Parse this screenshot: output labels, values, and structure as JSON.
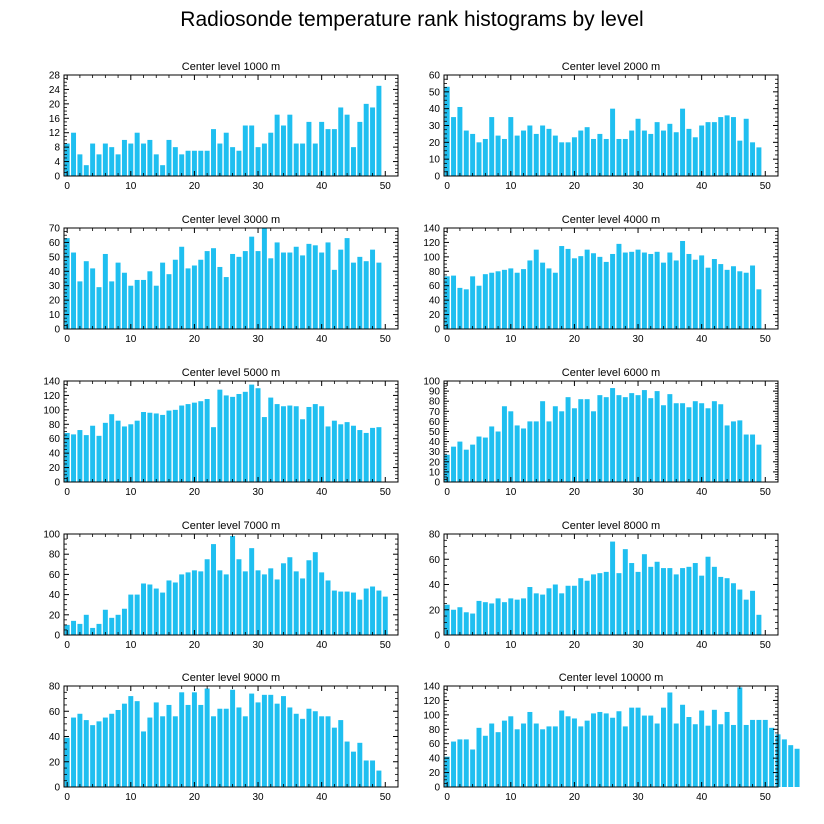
{
  "title": "Radiosonde temperature rank histograms by level",
  "chart_data": [
    {
      "type": "bar",
      "title": "Center level 1000 m",
      "ylim": [
        0,
        28
      ],
      "yticks": [
        0,
        4,
        8,
        12,
        16,
        20,
        24,
        28
      ],
      "xlim": [
        -0.5,
        52
      ],
      "xticks": [
        0,
        10,
        20,
        30,
        40,
        50
      ],
      "color": "#1fbff0",
      "values": [
        9,
        12,
        6,
        3,
        9,
        6,
        9,
        8,
        6,
        10,
        9,
        12,
        9,
        10,
        6,
        3,
        10,
        8,
        6,
        7,
        7,
        7,
        7,
        13,
        9,
        12,
        8,
        7,
        14,
        14,
        8,
        9,
        12,
        17,
        14,
        17,
        9,
        9,
        15,
        9,
        15,
        13,
        13,
        19,
        17,
        8,
        15,
        20,
        19,
        25
      ]
    },
    {
      "type": "bar",
      "title": "Center level 2000 m",
      "ylim": [
        0,
        60
      ],
      "yticks": [
        0,
        10,
        20,
        30,
        40,
        50,
        60
      ],
      "xlim": [
        -0.5,
        52
      ],
      "xticks": [
        0,
        10,
        20,
        30,
        40,
        50
      ],
      "color": "#1fbff0",
      "values": [
        53,
        35,
        41,
        27,
        25,
        20,
        22,
        35,
        24,
        22,
        35,
        24,
        27,
        30,
        25,
        30,
        28,
        24,
        20,
        20,
        23,
        27,
        29,
        22,
        25,
        22,
        40,
        22,
        22,
        27,
        34,
        27,
        25,
        32,
        27,
        31,
        26,
        40,
        28,
        23,
        30,
        32,
        32,
        35,
        36,
        35,
        21,
        34,
        20,
        17
      ]
    },
    {
      "type": "bar",
      "title": "Center level 3000 m",
      "ylim": [
        0,
        70
      ],
      "yticks": [
        0,
        10,
        20,
        30,
        40,
        50,
        60,
        70
      ],
      "xlim": [
        -0.5,
        52
      ],
      "xticks": [
        0,
        10,
        20,
        30,
        40,
        50
      ],
      "color": "#1fbff0",
      "values": [
        63,
        53,
        33,
        47,
        42,
        29,
        52,
        33,
        46,
        39,
        30,
        34,
        34,
        40,
        30,
        46,
        38,
        48,
        57,
        42,
        44,
        48,
        54,
        56,
        43,
        36,
        52,
        50,
        54,
        64,
        54,
        70,
        49,
        60,
        53,
        53,
        57,
        51,
        59,
        58,
        53,
        60,
        41,
        55,
        63,
        46,
        50,
        47,
        55,
        46
      ]
    },
    {
      "type": "bar",
      "title": "Center level 4000 m",
      "ylim": [
        0,
        140
      ],
      "yticks": [
        0,
        20,
        40,
        60,
        80,
        100,
        120,
        140
      ],
      "xlim": [
        -0.5,
        52
      ],
      "xticks": [
        0,
        10,
        20,
        30,
        40,
        50
      ],
      "color": "#1fbff0",
      "values": [
        73,
        74,
        57,
        55,
        73,
        60,
        76,
        78,
        80,
        82,
        84,
        78,
        83,
        95,
        110,
        92,
        84,
        78,
        115,
        111,
        98,
        101,
        110,
        105,
        100,
        93,
        104,
        118,
        106,
        107,
        110,
        106,
        104,
        107,
        92,
        106,
        95,
        122,
        104,
        96,
        102,
        85,
        97,
        90,
        82,
        87,
        80,
        78,
        88,
        55
      ]
    },
    {
      "type": "bar",
      "title": "Center level 5000 m",
      "ylim": [
        0,
        140
      ],
      "yticks": [
        0,
        20,
        40,
        60,
        80,
        100,
        120,
        140
      ],
      "xlim": [
        -0.5,
        52
      ],
      "xticks": [
        0,
        10,
        20,
        30,
        40,
        50
      ],
      "color": "#1fbff0",
      "values": [
        68,
        66,
        72,
        65,
        78,
        64,
        82,
        94,
        85,
        77,
        80,
        85,
        97,
        96,
        95,
        93,
        99,
        100,
        106,
        108,
        110,
        112,
        115,
        76,
        128,
        120,
        118,
        122,
        125,
        135,
        130,
        90,
        117,
        108,
        105,
        106,
        105,
        87,
        104,
        108,
        105,
        77,
        85,
        80,
        83,
        78,
        72,
        68,
        75,
        76
      ]
    },
    {
      "type": "bar",
      "title": "Center level 6000 m",
      "ylim": [
        0,
        100
      ],
      "yticks": [
        0,
        10,
        20,
        30,
        40,
        50,
        60,
        70,
        80,
        90,
        100
      ],
      "xlim": [
        -0.5,
        52
      ],
      "xticks": [
        0,
        10,
        20,
        30,
        40,
        50
      ],
      "color": "#1fbff0",
      "values": [
        27,
        35,
        40,
        32,
        37,
        45,
        44,
        55,
        50,
        75,
        70,
        56,
        53,
        60,
        60,
        80,
        60,
        75,
        70,
        84,
        73,
        82,
        82,
        70,
        86,
        84,
        93,
        86,
        84,
        88,
        86,
        91,
        83,
        90,
        76,
        87,
        78,
        78,
        74,
        80,
        78,
        73,
        80,
        77,
        56,
        60,
        61,
        47,
        47,
        37
      ]
    },
    {
      "type": "bar",
      "title": "Center level 7000 m",
      "ylim": [
        0,
        100
      ],
      "yticks": [
        0,
        20,
        40,
        60,
        80,
        100
      ],
      "xlim": [
        -0.5,
        52
      ],
      "xticks": [
        0,
        10,
        20,
        30,
        40,
        50
      ],
      "color": "#1fbff0",
      "values": [
        10,
        14,
        11,
        20,
        7,
        11,
        25,
        17,
        20,
        26,
        40,
        40,
        51,
        50,
        46,
        42,
        54,
        52,
        60,
        62,
        64,
        63,
        75,
        90,
        64,
        60,
        98,
        75,
        63,
        86,
        64,
        60,
        66,
        55,
        71,
        77,
        63,
        56,
        74,
        82,
        62,
        54,
        44,
        43,
        43,
        42,
        35,
        46,
        48,
        44,
        38
      ]
    },
    {
      "type": "bar",
      "title": "Center level 8000 m",
      "ylim": [
        0,
        80
      ],
      "yticks": [
        0,
        20,
        40,
        60,
        80
      ],
      "xlim": [
        -0.5,
        52
      ],
      "xticks": [
        0,
        10,
        20,
        30,
        40,
        50
      ],
      "color": "#1fbff0",
      "values": [
        24,
        20,
        22,
        18,
        17,
        27,
        26,
        25,
        29,
        26,
        29,
        28,
        29,
        38,
        33,
        32,
        37,
        40,
        33,
        39,
        39,
        45,
        43,
        48,
        49,
        50,
        74,
        49,
        68,
        57,
        50,
        64,
        54,
        58,
        53,
        53,
        48,
        53,
        54,
        57,
        47,
        62,
        54,
        46,
        45,
        41,
        36,
        28,
        35,
        16
      ]
    },
    {
      "type": "bar",
      "title": "Center level 9000 m",
      "ylim": [
        0,
        80
      ],
      "yticks": [
        0,
        20,
        40,
        60,
        80
      ],
      "xlim": [
        -0.5,
        52
      ],
      "xticks": [
        0,
        10,
        20,
        30,
        40,
        50
      ],
      "color": "#1fbff0",
      "values": [
        39,
        55,
        58,
        53,
        49,
        52,
        55,
        58,
        61,
        66,
        72,
        68,
        44,
        55,
        67,
        56,
        65,
        56,
        75,
        65,
        75,
        65,
        78,
        56,
        62,
        62,
        77,
        63,
        56,
        74,
        67,
        73,
        73,
        66,
        72,
        63,
        58,
        54,
        62,
        60,
        56,
        56,
        47,
        53,
        36,
        28,
        35,
        21,
        21,
        13
      ]
    },
    {
      "type": "bar",
      "title": "Center level 10000 m",
      "ylim": [
        0,
        140
      ],
      "yticks": [
        0,
        20,
        40,
        60,
        80,
        100,
        120,
        140
      ],
      "xlim": [
        -0.5,
        52
      ],
      "xticks": [
        0,
        10,
        20,
        30,
        40,
        50
      ],
      "color": "#1fbff0",
      "values": [
        42,
        63,
        66,
        66,
        52,
        82,
        71,
        88,
        76,
        92,
        98,
        80,
        88,
        104,
        88,
        80,
        84,
        84,
        106,
        98,
        95,
        84,
        92,
        102,
        104,
        102,
        96,
        105,
        84,
        110,
        110,
        99,
        99,
        88,
        110,
        131,
        88,
        114,
        97,
        87,
        106,
        85,
        107,
        87,
        104,
        86,
        138,
        86,
        93,
        93,
        93,
        82,
        73,
        66,
        58,
        53
      ]
    }
  ]
}
